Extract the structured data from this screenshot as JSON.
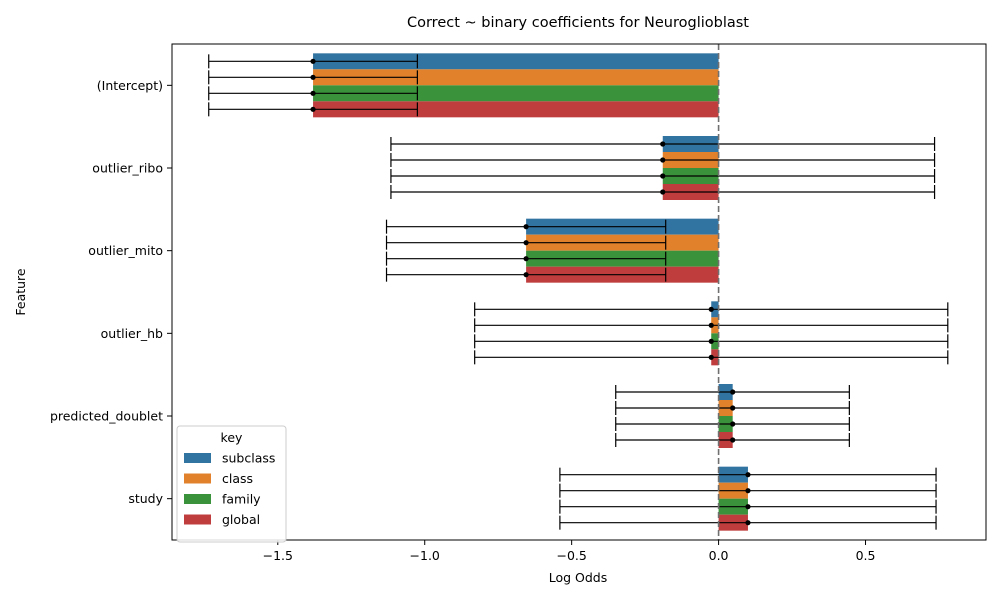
{
  "chart_data": {
    "type": "bar",
    "orientation": "horizontal",
    "title": "Correct ~ binary coefficients for Neuroglioblast",
    "xlabel": "Log Odds",
    "ylabel": "Feature",
    "xlim": [
      -1.86,
      0.91
    ],
    "xticks": [
      -1.5,
      -1.0,
      -0.5,
      0.0,
      0.5
    ],
    "xtick_labels": [
      "−1.5",
      "−1.0",
      "−0.5",
      "0.0",
      "0.5"
    ],
    "reference_line": 0,
    "categories": [
      "(Intercept)",
      "outlier_ribo",
      "outlier_mito",
      "outlier_hb",
      "predicted_doublet",
      "study"
    ],
    "legend": {
      "title": "key",
      "position": "lower-left"
    },
    "series": [
      {
        "name": "subclass",
        "color": "#3274a1",
        "values": [
          -1.38,
          -0.19,
          -0.655,
          -0.025,
          0.048,
          0.1
        ],
        "ci_low": [
          -1.735,
          -1.115,
          -1.13,
          -0.83,
          -0.35,
          -0.54
        ],
        "ci_high": [
          -1.025,
          0.735,
          -0.18,
          0.78,
          0.445,
          0.74
        ]
      },
      {
        "name": "class",
        "color": "#e1812c",
        "values": [
          -1.38,
          -0.19,
          -0.655,
          -0.025,
          0.048,
          0.1
        ],
        "ci_low": [
          -1.735,
          -1.115,
          -1.13,
          -0.83,
          -0.35,
          -0.54
        ],
        "ci_high": [
          -1.025,
          0.735,
          -0.18,
          0.78,
          0.445,
          0.74
        ]
      },
      {
        "name": "family",
        "color": "#3a923a",
        "values": [
          -1.38,
          -0.19,
          -0.655,
          -0.025,
          0.048,
          0.1
        ],
        "ci_low": [
          -1.735,
          -1.115,
          -1.13,
          -0.83,
          -0.35,
          -0.54
        ],
        "ci_high": [
          -1.025,
          0.735,
          -0.18,
          0.78,
          0.445,
          0.74
        ]
      },
      {
        "name": "global",
        "color": "#c03d3e",
        "values": [
          -1.38,
          -0.19,
          -0.655,
          -0.025,
          0.048,
          0.1
        ],
        "ci_low": [
          -1.735,
          -1.115,
          -1.13,
          -0.83,
          -0.35,
          -0.54
        ],
        "ci_high": [
          -1.025,
          0.735,
          -0.18,
          0.78,
          0.445,
          0.74
        ]
      }
    ]
  }
}
